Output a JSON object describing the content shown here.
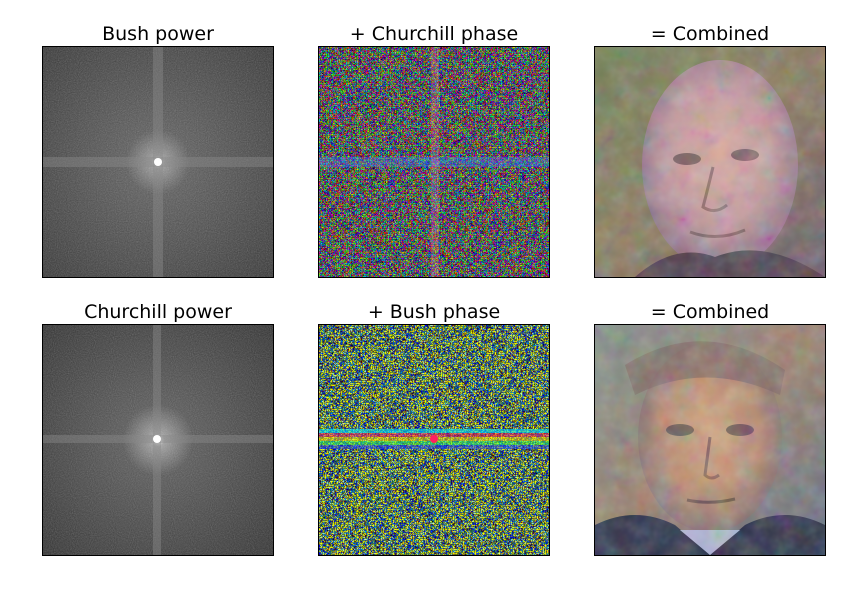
{
  "panels": [
    {
      "title": "Bush power",
      "kind": "power"
    },
    {
      "title": "+ Churchill phase",
      "kind": "phase"
    },
    {
      "title": "= Combined",
      "kind": "face-churchill"
    },
    {
      "title": "Churchill power",
      "kind": "power"
    },
    {
      "title": "+ Bush phase",
      "kind": "phase"
    },
    {
      "title": "= Combined",
      "kind": "face-bush"
    }
  ]
}
